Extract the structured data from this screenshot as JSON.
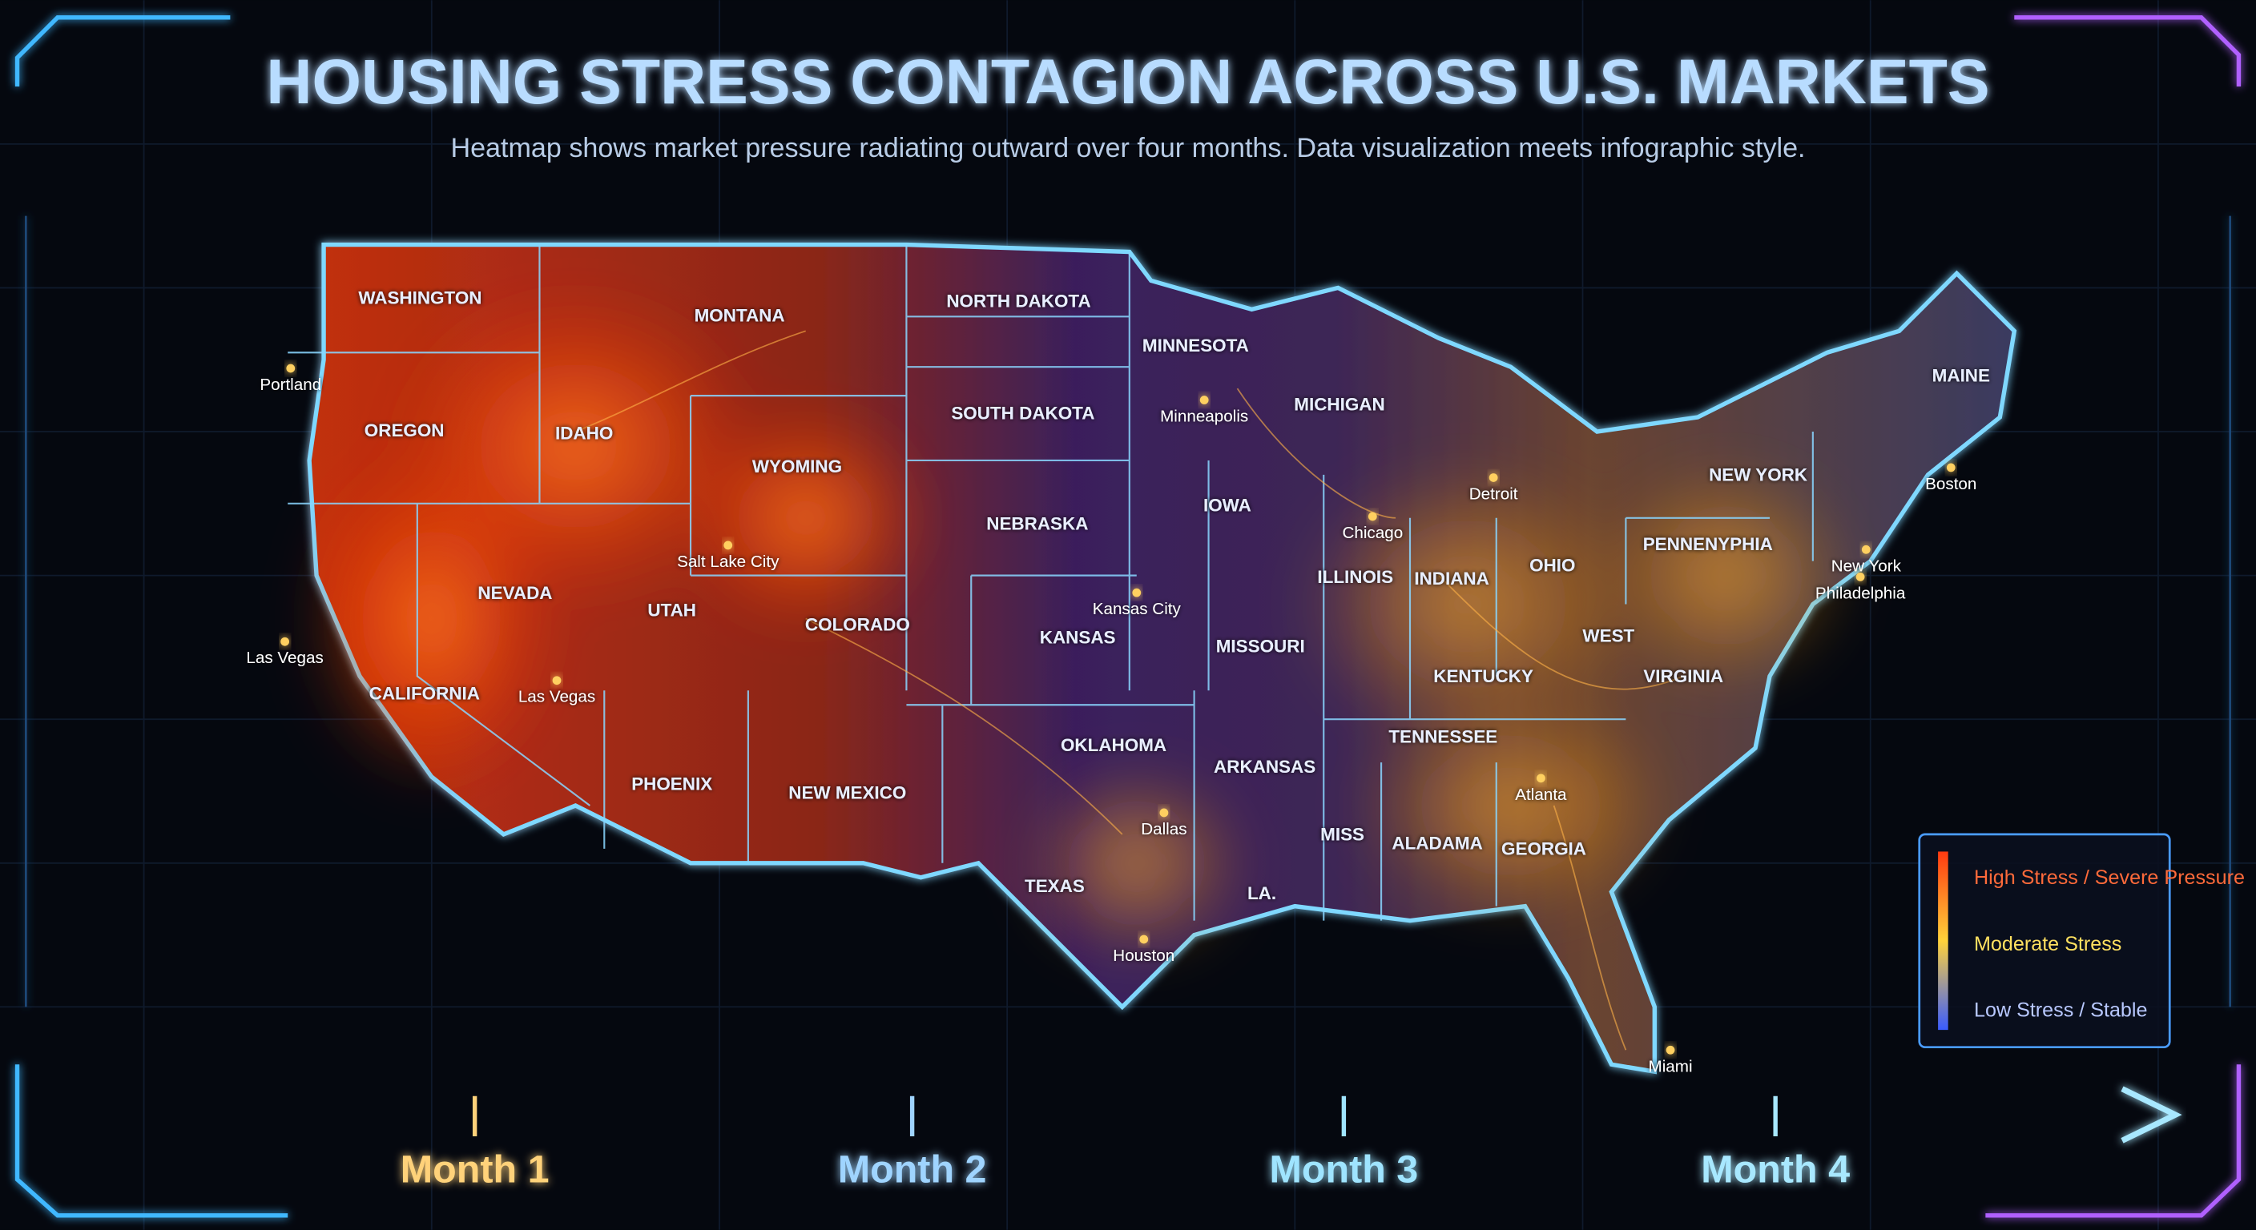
{
  "header": {
    "title": "HOUSING STRESS CONTAGION ACROSS U.S. MARKETS",
    "subtitle": "Heatmap shows market pressure radiating outward over four months. Data visualization meets infographic style."
  },
  "map": {
    "states": [
      "WASHINGTON",
      "MONTANA",
      "NORTH DAKOTA",
      "MINNESOTA",
      "OREGON",
      "IDAHO",
      "WYOMING",
      "SOUTH DAKOTA",
      "MICHIGAN",
      "MAINE",
      "NEW YORK",
      "NEVADA",
      "UTAH",
      "COLORADO",
      "NEBRASKA",
      "IOWA",
      "ILLINOIS",
      "INDIANA",
      "OHIO",
      "PENNENYPHIA",
      "KANSAS",
      "MISSOURI",
      "WEST",
      "VIRGINIA",
      "KENTUCKY",
      "CALIFORNIA",
      "TENNESSEE",
      "OKLAHOMA",
      "ARKANSAS",
      "PHOENIX",
      "NEW MEXICO",
      "MISS",
      "ALADAMA",
      "GEORGIA",
      "TEXAS",
      "LA."
    ],
    "cities": [
      "Portland",
      "Minneapolis",
      "Detroit",
      "Boston",
      "Salt Lake City",
      "Chicago",
      "New York",
      "Philadelphia",
      "Kansas City",
      "Las Vegas",
      "Las Vegas",
      "Atlanta",
      "Dallas",
      "Houston",
      "Miami"
    ]
  },
  "legend": {
    "items": [
      "High Stress / Severe Pressure",
      "Moderate Stress",
      "Low Stress / Stable"
    ]
  },
  "timeline": {
    "labels": [
      "Month 1",
      "Month 2",
      "Month 3",
      "Month 4"
    ]
  }
}
